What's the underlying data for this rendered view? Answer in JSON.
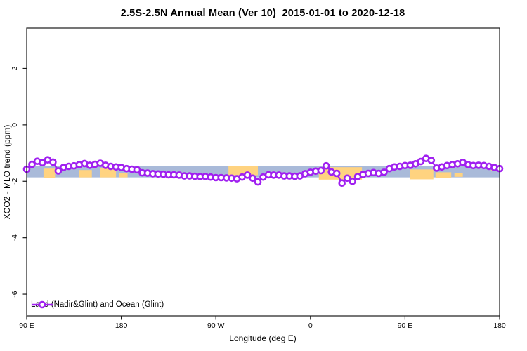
{
  "title": "2.5S-2.5N Annual Mean (Ver 10)  2015-01-01 to 2020-12-18",
  "axes": {
    "x_label": "Longitude (deg E)",
    "y_label": "XCO2 - MLO trend (ppm)"
  },
  "legend": {
    "marker": "open-circle-on-line",
    "label": "Land (Nadir&Glint) and Ocean (Glint)"
  },
  "colors": {
    "series": "#A020F0",
    "marker_fill": "#ffffff",
    "band_blue": "#A9BAD9",
    "band_orange": "#FFD380",
    "axis": "#1a1a1a",
    "background": "#ffffff"
  },
  "chart_data": {
    "type": "line",
    "title": "2.5S-2.5N Annual Mean (Ver 10)  2015-01-01 to 2020-12-18",
    "xlabel": "Longitude (deg E)",
    "ylabel": "XCO2 - MLO trend (ppm)",
    "xlim": [
      90,
      540
    ],
    "ylim": [
      -6.77,
      3.43
    ],
    "grid": false,
    "legend_position": "bottom-left-inside",
    "xticks": [
      {
        "pos": 90,
        "label": "90 E"
      },
      {
        "pos": 180,
        "label": "180"
      },
      {
        "pos": 270,
        "label": "90 W"
      },
      {
        "pos": 360,
        "label": "0"
      },
      {
        "pos": 450,
        "label": "90 E"
      },
      {
        "pos": 540,
        "label": "180"
      }
    ],
    "yticks": [
      {
        "pos": 2,
        "label": "2"
      },
      {
        "pos": 0,
        "label": "0"
      },
      {
        "pos": -2,
        "label": "-2"
      },
      {
        "pos": -4,
        "label": "-4"
      },
      {
        "pos": -6,
        "label": "-6"
      }
    ],
    "x_start": 90,
    "x_step": 5,
    "series": [
      {
        "name": "Land (Nadir&Glint) and Ocean (Glint)",
        "color": "#A020F0",
        "marker": "open-circle",
        "values": [
          -1.57,
          -1.4,
          -1.29,
          -1.34,
          -1.24,
          -1.32,
          -1.63,
          -1.51,
          -1.47,
          -1.45,
          -1.41,
          -1.37,
          -1.43,
          -1.4,
          -1.36,
          -1.43,
          -1.47,
          -1.49,
          -1.51,
          -1.55,
          -1.57,
          -1.59,
          -1.7,
          -1.71,
          -1.73,
          -1.74,
          -1.75,
          -1.77,
          -1.77,
          -1.78,
          -1.81,
          -1.81,
          -1.82,
          -1.83,
          -1.83,
          -1.85,
          -1.87,
          -1.87,
          -1.88,
          -1.89,
          -1.91,
          -1.85,
          -1.78,
          -1.89,
          -2.02,
          -1.85,
          -1.77,
          -1.78,
          -1.78,
          -1.81,
          -1.81,
          -1.82,
          -1.81,
          -1.73,
          -1.68,
          -1.64,
          -1.62,
          -1.45,
          -1.67,
          -1.72,
          -2.06,
          -1.89,
          -2.0,
          -1.83,
          -1.76,
          -1.72,
          -1.69,
          -1.72,
          -1.68,
          -1.55,
          -1.49,
          -1.47,
          -1.44,
          -1.43,
          -1.38,
          -1.3,
          -1.19,
          -1.26,
          -1.53,
          -1.49,
          -1.44,
          -1.41,
          -1.38,
          -1.33,
          -1.41,
          -1.44,
          -1.43,
          -1.44,
          -1.47,
          -1.51,
          -1.55
        ]
      }
    ],
    "bands": {
      "blue": {
        "x": [
          90,
          540
        ],
        "v": [
          -1.45,
          -1.86
        ],
        "color": "#A9BAD9"
      },
      "orange_patches": [
        {
          "x": [
            106,
            117
          ],
          "v": [
            -1.55,
            -1.87
          ]
        },
        {
          "x": [
            140,
            152
          ],
          "v": [
            -1.6,
            -1.86
          ]
        },
        {
          "x": [
            160,
            175
          ],
          "v": [
            -1.52,
            -1.86
          ]
        },
        {
          "x": [
            178,
            186
          ],
          "v": [
            -1.72,
            -1.86
          ]
        },
        {
          "x": [
            218,
            223
          ],
          "v": [
            -1.76,
            -1.85
          ]
        },
        {
          "x": [
            282,
            310
          ],
          "v": [
            -1.46,
            -1.78
          ]
        },
        {
          "x": [
            368,
            409
          ],
          "v": [
            -1.5,
            -1.94
          ]
        },
        {
          "x": [
            455,
            477
          ],
          "v": [
            -1.58,
            -1.93
          ]
        },
        {
          "x": [
            479,
            494
          ],
          "v": [
            -1.68,
            -1.87
          ]
        },
        {
          "x": [
            497,
            505
          ],
          "v": [
            -1.7,
            -1.84
          ]
        },
        {
          "x": [
            532,
            540
          ],
          "v": [
            -1.46,
            -1.63
          ]
        }
      ]
    }
  }
}
